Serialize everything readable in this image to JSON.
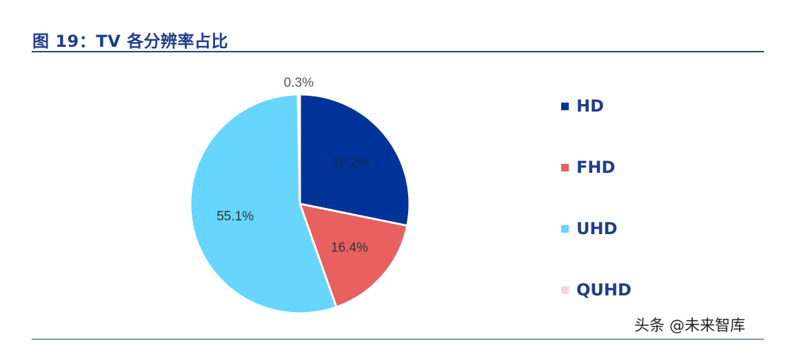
{
  "header": {
    "title": "图 19：TV 各分辨率占比"
  },
  "chart_data": {
    "type": "pie",
    "title": "",
    "categories": [
      "HD",
      "FHD",
      "UHD",
      "QUHD"
    ],
    "values": [
      28.2,
      16.4,
      55.1,
      0.3
    ],
    "labels": [
      "28.2%",
      "16.4%",
      "55.1%",
      "0.3%"
    ],
    "colors": [
      "#003399",
      "#e86060",
      "#66d6ff",
      "#f6d5d8"
    ],
    "legend": "right"
  },
  "watermark": "头条 @未来智库"
}
